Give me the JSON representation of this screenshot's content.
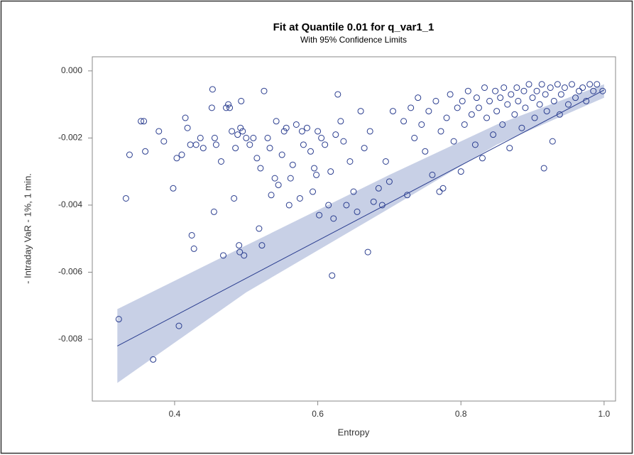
{
  "chart_data": {
    "type": "scatter",
    "title": "Fit at Quantile 0.01 for q_var1_1",
    "subtitle": "With 95% Confidence Limits",
    "x_label": "Entropy",
    "y_label": "- Intraday VaR - 1%, 1 min.",
    "xlim": [
      0.285,
      1.016
    ],
    "ylim": [
      -0.00984,
      0.00042
    ],
    "xticks": [
      0.4,
      0.6,
      0.8,
      {
        "value": 1.0,
        "label": "1.0"
      }
    ],
    "yticks": [
      {
        "value": 0,
        "label": "0.000"
      },
      {
        "value": -0.002,
        "label": "-0.002"
      },
      {
        "value": -0.004,
        "label": "-0.004"
      },
      {
        "value": -0.006,
        "label": "-0.006"
      },
      {
        "value": -0.008,
        "label": "-0.008"
      }
    ],
    "marker_color": "#2a3d8f",
    "x": [
      0.322,
      0.332,
      0.337,
      0.353,
      0.357,
      0.359,
      0.37,
      0.378,
      0.385,
      0.398,
      0.403,
      0.406,
      0.41,
      0.415,
      0.418,
      0.422,
      0.424,
      0.427,
      0.43,
      0.436,
      0.44,
      0.452,
      0.453,
      0.455,
      0.456,
      0.458,
      0.465,
      0.468,
      0.472,
      0.475,
      0.477,
      0.48,
      0.483,
      0.485,
      0.488,
      0.49,
      0.491,
      0.492,
      0.493,
      0.495,
      0.497,
      0.5,
      0.505,
      0.51,
      0.515,
      0.518,
      0.52,
      0.522,
      0.525,
      0.53,
      0.533,
      0.535,
      0.54,
      0.542,
      0.545,
      0.55,
      0.553,
      0.556,
      0.56,
      0.562,
      0.565,
      0.57,
      0.575,
      0.578,
      0.58,
      0.585,
      0.59,
      0.593,
      0.595,
      0.598,
      0.6,
      0.602,
      0.605,
      0.61,
      0.615,
      0.618,
      0.62,
      0.622,
      0.625,
      0.628,
      0.632,
      0.636,
      0.64,
      0.645,
      0.65,
      0.655,
      0.66,
      0.665,
      0.67,
      0.673,
      0.678,
      0.685,
      0.69,
      0.695,
      0.7,
      0.705,
      0.72,
      0.725,
      0.73,
      0.735,
      0.74,
      0.745,
      0.75,
      0.755,
      0.76,
      0.765,
      0.77,
      0.772,
      0.775,
      0.78,
      0.785,
      0.79,
      0.795,
      0.8,
      0.802,
      0.805,
      0.81,
      0.815,
      0.82,
      0.822,
      0.825,
      0.83,
      0.833,
      0.836,
      0.84,
      0.845,
      0.848,
      0.85,
      0.855,
      0.858,
      0.86,
      0.865,
      0.868,
      0.87,
      0.875,
      0.878,
      0.88,
      0.885,
      0.888,
      0.89,
      0.895,
      0.9,
      0.903,
      0.906,
      0.91,
      0.913,
      0.916,
      0.918,
      0.92,
      0.925,
      0.928,
      0.93,
      0.935,
      0.938,
      0.94,
      0.945,
      0.95,
      0.955,
      0.96,
      0.965,
      0.97,
      0.975,
      0.98,
      0.985,
      0.99,
      0.998
    ],
    "y": [
      -0.0074,
      -0.0038,
      -0.0025,
      -0.0015,
      -0.0015,
      -0.0024,
      -0.0086,
      -0.0018,
      -0.0021,
      -0.0035,
      -0.0026,
      -0.0076,
      -0.0025,
      -0.0014,
      -0.0017,
      -0.0022,
      -0.0049,
      -0.0053,
      -0.0022,
      -0.002,
      -0.0023,
      -0.0011,
      -0.00055,
      -0.0042,
      -0.002,
      -0.0022,
      -0.0027,
      -0.0055,
      -0.0011,
      -0.001,
      -0.0011,
      -0.0018,
      -0.0038,
      -0.0023,
      -0.0019,
      -0.0052,
      -0.0054,
      -0.0017,
      -0.0009,
      -0.0018,
      -0.0055,
      -0.002,
      -0.0022,
      -0.002,
      -0.0026,
      -0.0047,
      -0.0029,
      -0.0052,
      -0.0006,
      -0.002,
      -0.0023,
      -0.0037,
      -0.0032,
      -0.0015,
      -0.0034,
      -0.0025,
      -0.0018,
      -0.0017,
      -0.004,
      -0.0032,
      -0.0028,
      -0.0016,
      -0.0038,
      -0.0018,
      -0.0022,
      -0.0017,
      -0.0024,
      -0.0036,
      -0.0029,
      -0.0031,
      -0.0018,
      -0.0043,
      -0.002,
      -0.0022,
      -0.004,
      -0.003,
      -0.0061,
      -0.0044,
      -0.0019,
      -0.0007,
      -0.0015,
      -0.0021,
      -0.004,
      -0.0027,
      -0.0036,
      -0.0042,
      -0.0012,
      -0.0023,
      -0.0054,
      -0.0018,
      -0.0039,
      -0.0035,
      -0.004,
      -0.0027,
      -0.0033,
      -0.0012,
      -0.0015,
      -0.0037,
      -0.0011,
      -0.002,
      -0.0008,
      -0.0016,
      -0.0024,
      -0.0012,
      -0.0031,
      -0.0009,
      -0.0036,
      -0.0018,
      -0.0035,
      -0.0014,
      -0.0007,
      -0.0021,
      -0.0011,
      -0.003,
      -0.0009,
      -0.0016,
      -0.0006,
      -0.0013,
      -0.0022,
      -0.0008,
      -0.0011,
      -0.0026,
      -0.0005,
      -0.0014,
      -0.0009,
      -0.0019,
      -0.0006,
      -0.0012,
      -0.0008,
      -0.0016,
      -0.0005,
      -0.001,
      -0.0023,
      -0.0007,
      -0.0013,
      -0.0005,
      -0.0009,
      -0.0017,
      -0.0006,
      -0.0011,
      -0.0004,
      -0.0008,
      -0.0014,
      -0.0006,
      -0.001,
      -0.0004,
      -0.0029,
      -0.0007,
      -0.0012,
      -0.0005,
      -0.0021,
      -0.0009,
      -0.0004,
      -0.0013,
      -0.0007,
      -0.0005,
      -0.001,
      -0.0004,
      -0.0008,
      -0.0006,
      -0.0005,
      -0.0009,
      -0.0004,
      -0.0006,
      -0.0004,
      -0.0006
    ],
    "fit": {
      "color": "#2a3d8f",
      "x": [
        0.32,
        1.0
      ],
      "y": [
        -0.0082,
        -0.00057
      ]
    },
    "band": {
      "color": "#c8d0e6",
      "x": [
        0.32,
        0.5,
        0.7,
        0.85,
        1.0
      ],
      "lower": [
        -0.0093,
        -0.0066,
        -0.0041,
        -0.0022,
        -0.0008
      ],
      "upper": [
        -0.0071,
        -0.0052,
        -0.0031,
        -0.0016,
        -0.0004
      ]
    }
  }
}
